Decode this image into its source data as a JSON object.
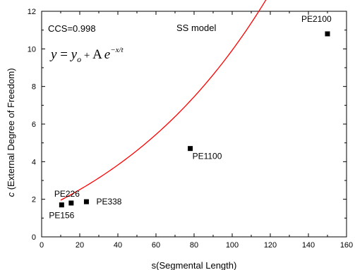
{
  "chart_data": {
    "type": "scatter",
    "title": "",
    "xlabel": "s(Segmental Length)",
    "ylabel_italic": "c",
    "ylabel_rest": " (External Degree of Freedom)",
    "xlim": [
      0,
      160
    ],
    "ylim": [
      0,
      12
    ],
    "xticks": [
      "0",
      "20",
      "40",
      "60",
      "80",
      "100",
      "120",
      "140",
      "160"
    ],
    "yticks": [
      "0",
      "2",
      "4",
      "6",
      "8",
      "10",
      "12"
    ],
    "grid": false,
    "annotations": {
      "ccs": "CCS=0.998",
      "model": "SS model"
    },
    "equation": {
      "lhs": "y",
      "eq": " = ",
      "y0_base": "y",
      "y0_sub": "o",
      "plus": " + ",
      "A": "A",
      "base": "e",
      "exponent": "−x/t"
    },
    "points": [
      {
        "label": "PE156",
        "x": 10.5,
        "y": 1.7
      },
      {
        "label": "PE226",
        "x": 15.5,
        "y": 1.8
      },
      {
        "label": "PE338",
        "x": 23.5,
        "y": 1.87
      },
      {
        "label": "PE1100",
        "x": 78,
        "y": 4.7
      },
      {
        "label": "PE2100",
        "x": 150,
        "y": 10.8
      }
    ],
    "fit_curve": {
      "color": "#ff0000",
      "x_start": 10,
      "x_end": 150,
      "y0": -3.05,
      "A": 4.5,
      "t": 94.4
    },
    "colors": {
      "marker": "#000000",
      "curve": "#ff0000",
      "axis": "#000000"
    }
  }
}
